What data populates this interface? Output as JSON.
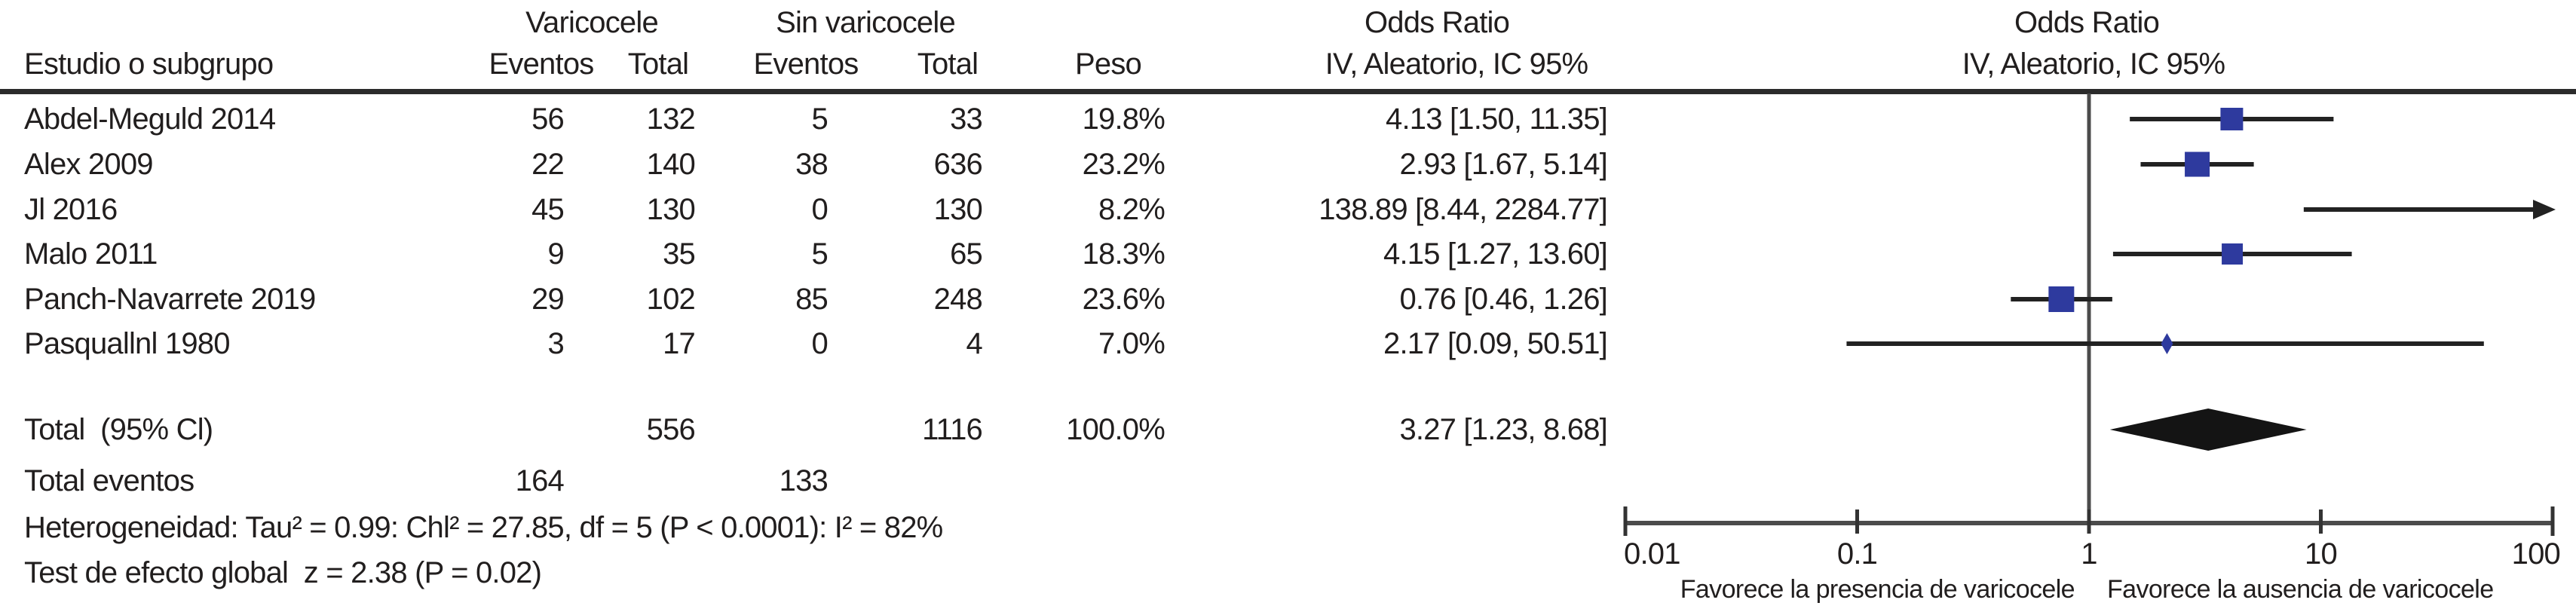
{
  "figure": {
    "headers": {
      "study": "Estudio o subgrupo",
      "varicocele": "Varicocele",
      "sin_varicocele": "Sin varicocele",
      "eventos": "Eventos",
      "total": "Total",
      "peso": "Peso",
      "odds_ratio": "Odds Ratio",
      "iv_method": "IV, Aleatorio, IC 95%"
    }
  },
  "colors": {
    "marker_blue": "#2e3a9e",
    "ci_line": "#222222",
    "diamond_black": "#141414",
    "axis_gray": "#4b4b4b",
    "tick_dark": "#333333",
    "text": "#211e1e"
  },
  "chart_data": {
    "type": "forest_plot",
    "effect_measure": "Odds Ratio",
    "model": "IV, Aleatorio, IC 95%",
    "x_scale": "log10",
    "x_range": [
      0.01,
      100
    ],
    "null_line": 1,
    "x_ticks": [
      {
        "v": 0.01,
        "label": "0.01"
      },
      {
        "v": 0.1,
        "label": "0.1"
      },
      {
        "v": 1,
        "label": "1"
      },
      {
        "v": 10,
        "label": "10"
      },
      {
        "v": 100,
        "label": "100"
      }
    ],
    "studies": [
      {
        "name": "Abdel-Meguld 2014",
        "eventos_var": "56",
        "total_var": "132",
        "eventos_sin": "5",
        "total_sin": "33",
        "peso": "19.8%",
        "or_text": "4.13 [1.50, 11.35]",
        "or": 4.13,
        "ci_low": 1.5,
        "ci_high": 11.35,
        "weight_pct": 19.8
      },
      {
        "name": "Alex 2009",
        "eventos_var": "22",
        "total_var": "140",
        "eventos_sin": "38",
        "total_sin": "636",
        "peso": "23.2%",
        "or_text": "2.93 [1.67, 5.14]",
        "or": 2.93,
        "ci_low": 1.67,
        "ci_high": 5.14,
        "weight_pct": 23.2
      },
      {
        "name": "Jl 2016",
        "eventos_var": "45",
        "total_var": "130",
        "eventos_sin": "0",
        "total_sin": "130",
        "peso": "8.2%",
        "or_text": "138.89 [8.44, 2284.77]",
        "or": 138.89,
        "ci_low": 8.44,
        "ci_high": 2284.77,
        "weight_pct": 8.2
      },
      {
        "name": "Malo 2011",
        "eventos_var": "9",
        "total_var": "35",
        "eventos_sin": "5",
        "total_sin": "65",
        "peso": "18.3%",
        "or_text": "4.15 [1.27, 13.60]",
        "or": 4.15,
        "ci_low": 1.27,
        "ci_high": 13.6,
        "weight_pct": 18.3
      },
      {
        "name": "Panch-Navarrete 2019",
        "eventos_var": "29",
        "total_var": "102",
        "eventos_sin": "85",
        "total_sin": "248",
        "peso": "23.6%",
        "or_text": "0.76 [0.46, 1.26]",
        "or": 0.76,
        "ci_low": 0.46,
        "ci_high": 1.26,
        "weight_pct": 23.6
      },
      {
        "name": "Pasquallnl 1980",
        "eventos_var": "3",
        "total_var": "17",
        "eventos_sin": "0",
        "total_sin": "4",
        "peso": "7.0%",
        "or_text": "2.17 [0.09, 50.51]",
        "or": 2.17,
        "ci_low": 0.09,
        "ci_high": 50.51,
        "weight_pct": 7.0
      }
    ],
    "total_row": {
      "label": "Total  (95% Cl)",
      "total_var": "556",
      "total_sin": "1116",
      "peso": "100.0%",
      "or_text": "3.27 [1.23, 8.68]",
      "or": 3.27,
      "ci_low": 1.23,
      "ci_high": 8.68
    },
    "total_events": {
      "label": "Total eventos",
      "var": "164",
      "sin": "133"
    },
    "heterogeneity": "Heterogeneidad: Tau² = 0.99: Chl² = 27.85, df = 5 (P < 0.0001): I² = 82%",
    "overall_test": "Test de efecto global  z = 2.38 (P = 0.02)",
    "favors_left": "Favorece la presencia de varicocele",
    "favors_right": "Favorece la ausencia de varicocele"
  }
}
